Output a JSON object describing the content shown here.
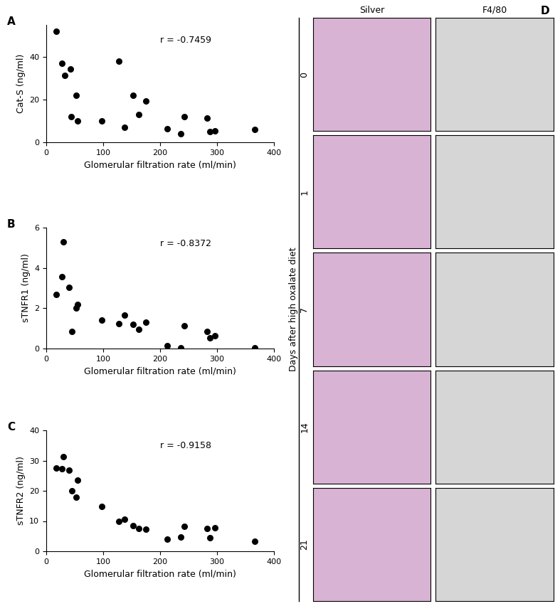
{
  "chart_data": [
    {
      "type": "scatter",
      "panel": "A",
      "x_label": "Glomerular filtration rate (ml/min)",
      "y_label": "Cat-S (ng/ml)",
      "annotation": "r = -0.7459",
      "color": "#000000",
      "marker": "circle",
      "x": [
        18,
        28,
        32,
        42,
        44,
        53,
        55,
        97,
        128,
        138,
        153,
        163,
        175,
        213,
        236,
        242,
        283,
        288,
        296,
        366
      ],
      "values": [
        52,
        37,
        31.5,
        34.5,
        12,
        22,
        10,
        10,
        38,
        7,
        22,
        13,
        19.5,
        6.5,
        4,
        12,
        11.5,
        5,
        5.5,
        6
      ],
      "xlim": [
        0,
        400
      ],
      "xticks": [
        0,
        100,
        200,
        300,
        400
      ],
      "ylim": [
        0,
        55
      ],
      "yticks": [
        0,
        20,
        40
      ]
    },
    {
      "type": "scatter",
      "panel": "B",
      "x_label": "Glomerular filtration rate (ml/min)",
      "y_label": "sTNFR1 (ng/ml)",
      "annotation": "r = -0.8372",
      "color": "#000000",
      "marker": "circle",
      "x": [
        18,
        27,
        30,
        40,
        45,
        52,
        55,
        97,
        128,
        138,
        152,
        163,
        175,
        213,
        236,
        242,
        283,
        288,
        296,
        366
      ],
      "values": [
        2.7,
        3.55,
        5.3,
        3.05,
        0.85,
        2.0,
        2.2,
        1.4,
        1.25,
        1.65,
        1.2,
        0.95,
        1.3,
        0.15,
        0.02,
        1.12,
        0.85,
        0.52,
        0.62,
        0.02
      ],
      "xlim": [
        0,
        400
      ],
      "xticks": [
        0,
        100,
        200,
        300,
        400
      ],
      "ylim": [
        0,
        6
      ],
      "yticks": [
        0,
        2,
        4,
        6
      ]
    },
    {
      "type": "scatter",
      "panel": "C",
      "x_label": "Glomerular filtration rate (ml/min)",
      "y_label": "sTNFR2 (ng/ml)",
      "annotation": "r = -0.9158",
      "color": "#000000",
      "marker": "circle",
      "x": [
        18,
        27,
        30,
        40,
        45,
        52,
        55,
        97,
        128,
        138,
        152,
        163,
        175,
        213,
        236,
        242,
        283,
        288,
        296,
        366
      ],
      "values": [
        27.5,
        27.2,
        31.2,
        26.8,
        20,
        17.8,
        23.5,
        14.8,
        9.8,
        10.5,
        8.5,
        7.5,
        7.2,
        4,
        4.8,
        8.3,
        7.5,
        4.5,
        7.8,
        3.3
      ],
      "xlim": [
        0,
        400
      ],
      "xticks": [
        0,
        100,
        200,
        300,
        400
      ],
      "ylim": [
        0,
        40
      ],
      "yticks": [
        0,
        10,
        20,
        30,
        40
      ]
    }
  ],
  "panel_d": {
    "panel": "D",
    "columns": [
      "Silver",
      "F4/80"
    ],
    "row_title": "Days after high oxalate diet",
    "rows": [
      "0",
      "1",
      "7",
      "14",
      "21"
    ]
  }
}
